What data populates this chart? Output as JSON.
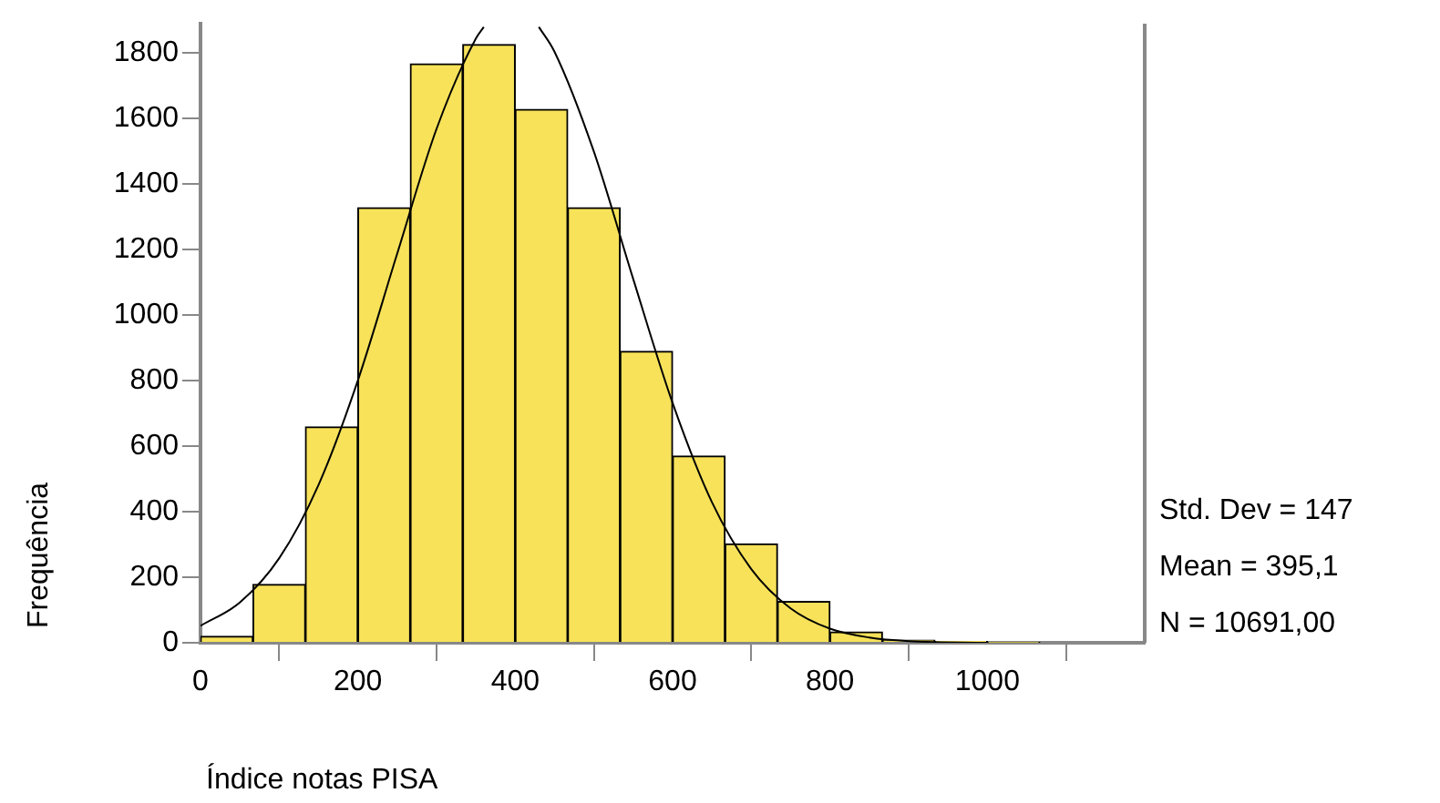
{
  "chart_data": {
    "type": "histogram",
    "xlabel": "Índice notas PISA",
    "ylabel": "Frequência",
    "bins": [
      0,
      66.7,
      133.3,
      200,
      266.7,
      333.3,
      400,
      466.7,
      533.3,
      600,
      666.7,
      733.3,
      800,
      866.7,
      933.3,
      1000,
      1066.7
    ],
    "values": [
      20,
      178,
      659,
      1328,
      1767,
      1826,
      1628,
      1328,
      890,
      570,
      302,
      126,
      33,
      8,
      4,
      2
    ],
    "color": "#f7e25a",
    "series": [
      {
        "type": "line",
        "color": "#000000",
        "x": [
          0,
          50,
          100,
          150,
          200,
          250,
          300,
          350,
          360,
          395,
          430,
          450,
          500,
          550,
          600,
          650,
          700,
          750,
          800,
          850,
          900,
          1000
        ],
        "values": [
          52,
          123,
          258,
          482,
          801,
          1188,
          1569,
          1845,
          1880,
          null,
          1880,
          1804,
          1499,
          1110,
          732,
          429,
          225,
          105,
          43,
          16,
          5,
          0
        ]
      }
    ],
    "xlim": [
      0,
      1200
    ],
    "xticks": [
      0,
      200,
      400,
      600,
      800,
      1000
    ],
    "ylim": [
      0,
      1890
    ],
    "yticks": [
      0,
      200,
      400,
      600,
      800,
      1000,
      1200,
      1400,
      1600,
      1800
    ],
    "grid": false,
    "legend": false,
    "marker": "none",
    "annotations": [
      "Std. Dev = 147",
      "Mean = 395,1",
      "N = 10691,00"
    ]
  }
}
